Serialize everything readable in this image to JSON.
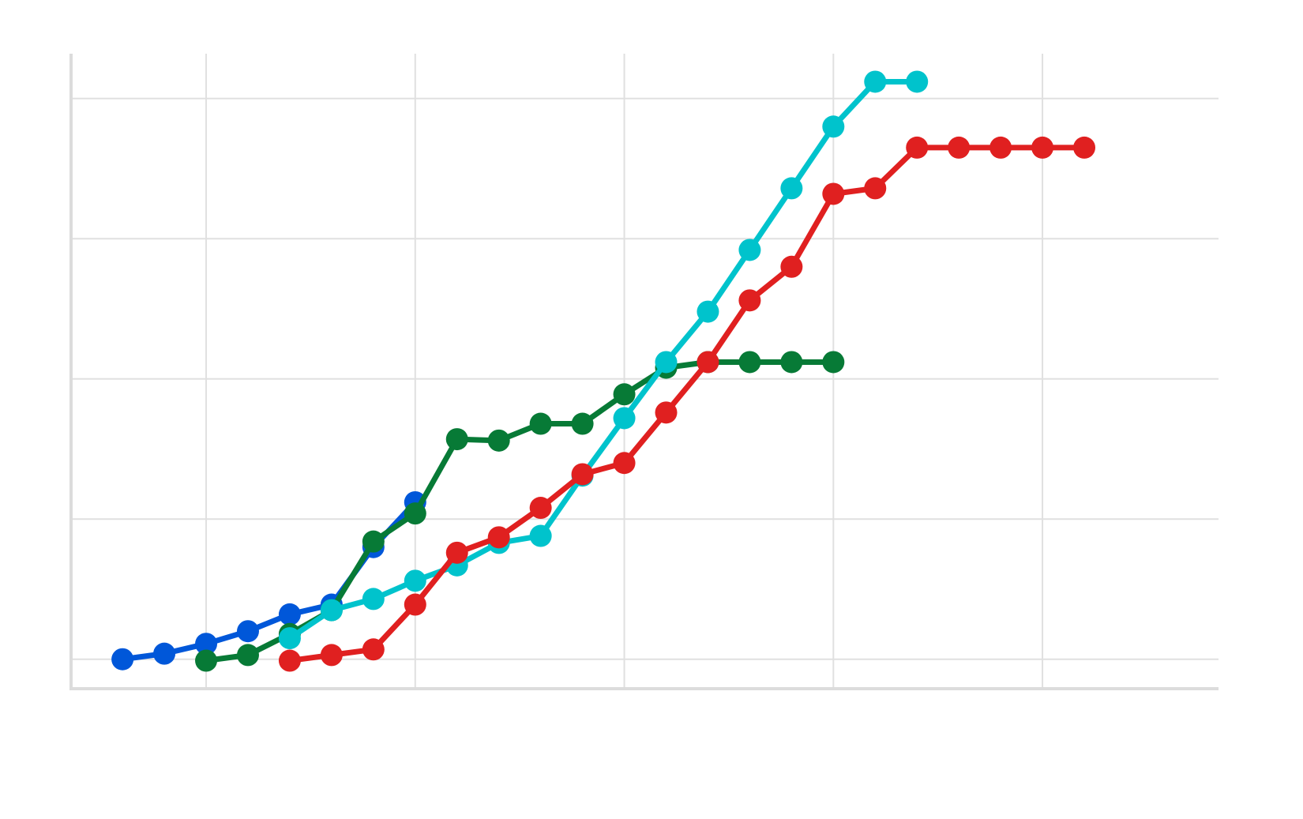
{
  "chart_data": {
    "type": "line",
    "x": [
      -2,
      -1,
      0,
      1,
      2,
      3,
      4,
      5,
      6,
      7,
      8,
      9,
      10,
      11,
      12,
      13,
      14,
      15,
      16,
      17,
      18,
      19,
      20,
      21
    ],
    "series": [
      {
        "color": "#0057d9",
        "values": [
          0,
          0.4,
          1.1,
          2.0,
          3.2,
          3.9,
          8.0,
          11.2,
          null,
          null,
          null,
          null,
          null,
          null,
          null,
          null,
          null,
          null,
          null,
          null,
          null,
          null,
          null,
          null
        ]
      },
      {
        "color": "#077a36",
        "values": [
          null,
          null,
          -0.1,
          0.3,
          1.8,
          3.5,
          8.4,
          10.4,
          15.7,
          15.6,
          16.8,
          16.8,
          18.9,
          20.8,
          21.2,
          21.2,
          21.2,
          21.2,
          null,
          null,
          null,
          null,
          null,
          null
        ]
      },
      {
        "color": "#00c3cc",
        "values": [
          null,
          null,
          null,
          null,
          1.5,
          3.5,
          4.3,
          5.6,
          6.7,
          8.3,
          8.8,
          13.1,
          17.2,
          21.2,
          24.8,
          29.2,
          33.6,
          38.0,
          41.2,
          41.2,
          null,
          null,
          null,
          null
        ]
      },
      {
        "color": "#e02020",
        "values": [
          null,
          null,
          null,
          null,
          -0.1,
          0.3,
          0.7,
          3.9,
          7.6,
          8.7,
          10.8,
          13.2,
          14.0,
          17.6,
          21.2,
          25.6,
          28.0,
          33.2,
          33.6,
          36.5,
          36.5,
          36.5,
          36.5,
          36.5
        ]
      }
    ],
    "xlim": [
      -3.23,
      24.21
    ],
    "ylim": [
      -2.1,
      43.2
    ],
    "xticks": [
      0,
      5,
      10,
      15,
      20
    ],
    "yticks": [
      0,
      10,
      20,
      30,
      40
    ],
    "grid": true
  }
}
